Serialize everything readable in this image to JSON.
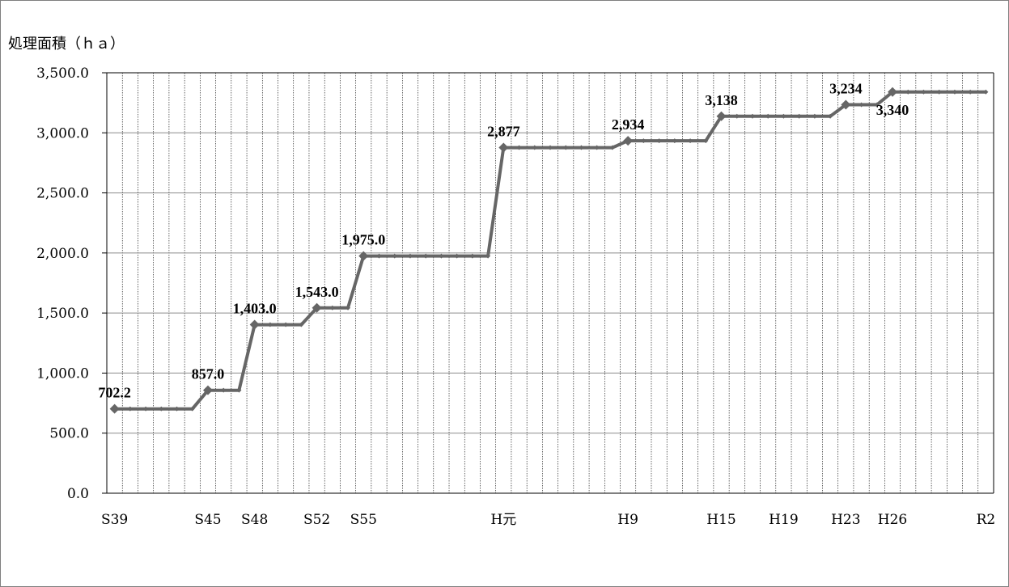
{
  "chart_data": {
    "type": "line",
    "ylabel": "処理面積（ｈａ）",
    "ylim": [
      0,
      3500
    ],
    "ytick_labels": [
      "0.0",
      "500.0",
      "1,000.0",
      "1,500.0",
      "2,000.0",
      "2,500.0",
      "3,000.0",
      "3,500.0"
    ],
    "grid": true,
    "legend": "none",
    "series_color": "#666666",
    "x_tick_labels": [
      {
        "index": 0,
        "label": "S39"
      },
      {
        "index": 6,
        "label": "S45"
      },
      {
        "index": 9,
        "label": "S48"
      },
      {
        "index": 13,
        "label": "S52"
      },
      {
        "index": 16,
        "label": "S55"
      },
      {
        "index": 25,
        "label": "H元"
      },
      {
        "index": 33,
        "label": "H9"
      },
      {
        "index": 39,
        "label": "H15"
      },
      {
        "index": 43,
        "label": "H19"
      },
      {
        "index": 47,
        "label": "H23"
      },
      {
        "index": 50,
        "label": "H26"
      },
      {
        "index": 56,
        "label": "R2"
      }
    ],
    "values": [
      702.2,
      702.2,
      702.2,
      702.2,
      702.2,
      702.2,
      857.0,
      857.0,
      857.0,
      1403.0,
      1403.0,
      1403.0,
      1403.0,
      1543.0,
      1543.0,
      1543.0,
      1975.0,
      1975.0,
      1975.0,
      1975.0,
      1975.0,
      1975.0,
      1975.0,
      1975.0,
      1975.0,
      2877,
      2877,
      2877,
      2877,
      2877,
      2877,
      2877,
      2877,
      2934,
      2934,
      2934,
      2934,
      2934,
      2934,
      3138,
      3138,
      3138,
      3138,
      3138,
      3138,
      3138,
      3138,
      3234,
      3234,
      3234,
      3340,
      3340,
      3340,
      3340,
      3340,
      3340,
      3340
    ],
    "data_labels": [
      {
        "index": 0,
        "text": "702.2",
        "pos": "above"
      },
      {
        "index": 6,
        "text": "857.0",
        "pos": "above"
      },
      {
        "index": 9,
        "text": "1,403.0",
        "pos": "above"
      },
      {
        "index": 13,
        "text": "1,543.0",
        "pos": "above"
      },
      {
        "index": 16,
        "text": "1,975.0",
        "pos": "above"
      },
      {
        "index": 25,
        "text": "2,877",
        "pos": "above"
      },
      {
        "index": 33,
        "text": "2,934",
        "pos": "above"
      },
      {
        "index": 39,
        "text": "3,138",
        "pos": "above"
      },
      {
        "index": 47,
        "text": "3,234",
        "pos": "above"
      },
      {
        "index": 50,
        "text": "3,340",
        "pos": "below"
      }
    ]
  }
}
